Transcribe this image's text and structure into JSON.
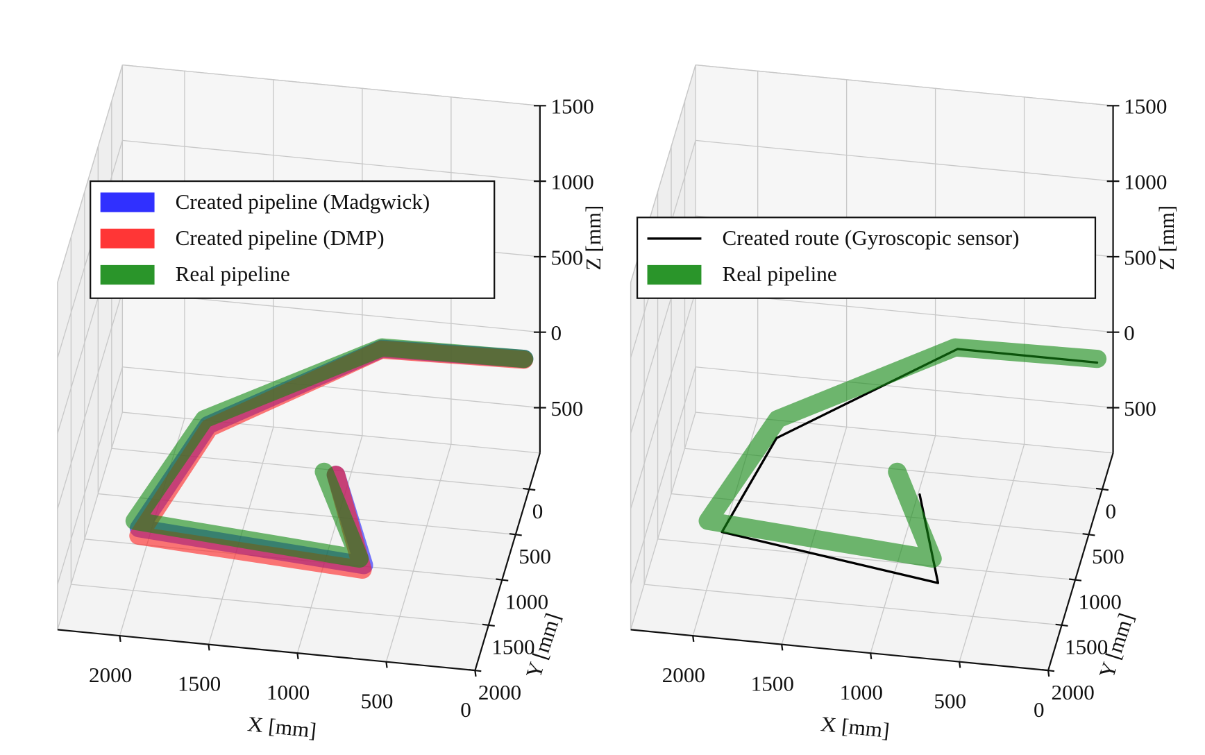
{
  "chart_data": [
    {
      "type": "line3d",
      "xlabel": "X [mm]",
      "ylabel": "Y [mm]",
      "zlabel": "Z [mm]",
      "xlim": [
        0,
        2350
      ],
      "ylim": [
        -400,
        2000
      ],
      "zlim": [
        -800,
        1500
      ],
      "xticks": [
        0,
        500,
        1000,
        1500,
        2000
      ],
      "yticks": [
        0,
        500,
        1000,
        1500,
        2000
      ],
      "zticks": [
        {
          "value": -500,
          "label": "500"
        },
        0,
        500,
        1000,
        1500
      ],
      "grid": true,
      "series": [
        {
          "name": "Created pipeline (Madgwick)",
          "color": "#1a1aff",
          "x": [
            80,
            875,
            1700,
            1910,
            620,
            920
          ],
          "y": [
            -340,
            -300,
            700,
            1880,
            2040,
            1100
          ],
          "z": [
            -150,
            -150,
            -150,
            -150,
            -150,
            -150
          ]
        },
        {
          "name": "Created pipeline (DMP)",
          "color": "#ff2020",
          "x": [
            80,
            875,
            1690,
            1900,
            620,
            920
          ],
          "y": [
            -330,
            -290,
            730,
            1960,
            2090,
            1100
          ],
          "z": [
            -150,
            -150,
            -150,
            -150,
            -150,
            -150
          ]
        },
        {
          "name": "Real pipeline",
          "color": "#138a13",
          "x": [
            80,
            875,
            1730,
            1945,
            655,
            990
          ],
          "y": [
            -340,
            -315,
            640,
            1805,
            1975,
            1080
          ],
          "z": [
            -150,
            -150,
            -150,
            -150,
            -150,
            -150
          ]
        }
      ]
    },
    {
      "type": "line3d",
      "xlabel": "X [mm]",
      "ylabel": "Y [mm]",
      "zlabel": "Z [mm]",
      "xlim": [
        0,
        2350
      ],
      "ylim": [
        -400,
        2000
      ],
      "zlim": [
        -800,
        1500
      ],
      "xticks": [
        0,
        500,
        1000,
        1500,
        2000
      ],
      "yticks": [
        0,
        500,
        1000,
        1500,
        2000
      ],
      "zticks": [
        {
          "value": -500,
          "label": "500"
        },
        0,
        500,
        1000,
        1500
      ],
      "grid": true,
      "series": [
        {
          "name": "Created route (Gyroscopic sensor)",
          "color": "#000000",
          "x": [
            75,
            860,
            1705,
            1850,
            585,
            830
          ],
          "y": [
            -300,
            -300,
            845,
            1910,
            2230,
            1300
          ],
          "z": [
            -150,
            -150,
            -150,
            -150,
            -150,
            -150
          ]
        },
        {
          "name": "Real pipeline",
          "color": "#138a13",
          "x": [
            80,
            875,
            1730,
            1945,
            655,
            990
          ],
          "y": [
            -340,
            -315,
            640,
            1805,
            1975,
            1080
          ],
          "z": [
            -150,
            -150,
            -150,
            -150,
            -150,
            -150
          ]
        }
      ]
    }
  ]
}
